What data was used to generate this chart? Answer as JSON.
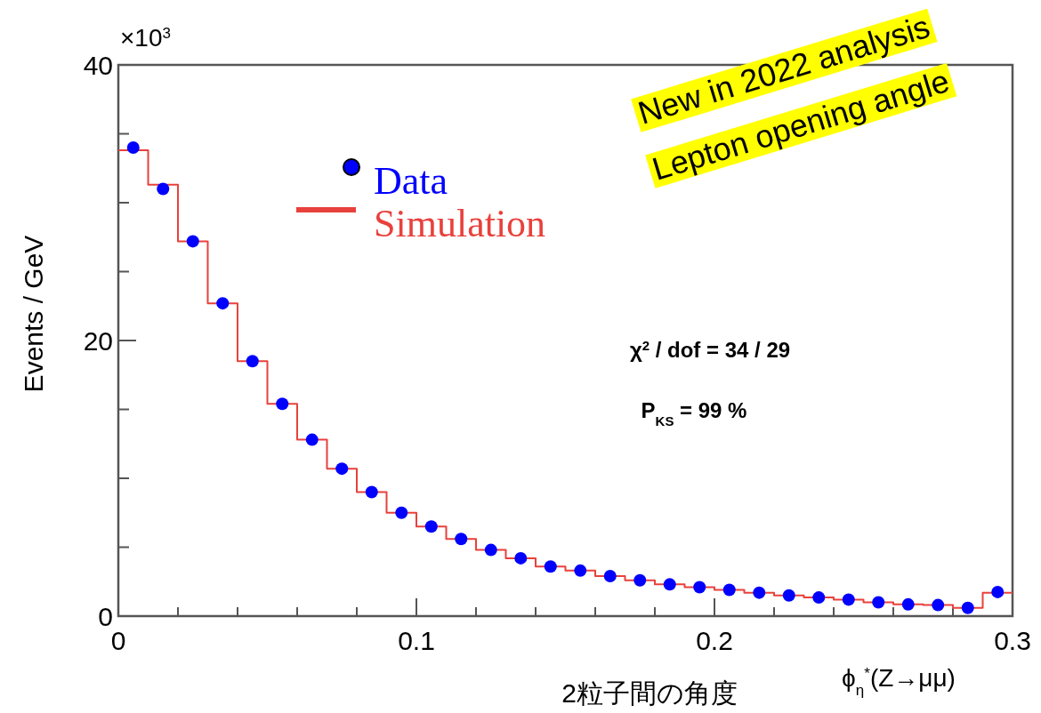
{
  "chart_data": {
    "type": "histogram",
    "ylabel": "Events / GeV",
    "xlabel": "ϕ$_{η}$$^{*}$(Z→μμ)",
    "xlim": [
      0,
      0.3
    ],
    "ylim": [
      0,
      40
    ],
    "xticks": [
      0,
      {
        "value": 0.02,
        "label": null
      },
      {
        "value": 0.04,
        "label": null
      },
      {
        "value": 0.06,
        "label": null
      },
      {
        "value": 0.08,
        "label": null
      },
      0.1,
      {
        "value": 0.12,
        "label": null
      },
      {
        "value": 0.14,
        "label": null
      },
      {
        "value": 0.16,
        "label": null
      },
      {
        "value": 0.18,
        "label": null
      },
      0.2,
      {
        "value": 0.22,
        "label": null
      },
      {
        "value": 0.24,
        "label": null
      },
      {
        "value": 0.26,
        "label": null
      },
      {
        "value": 0.28,
        "label": null
      },
      0.3
    ],
    "yticks": [
      0,
      {
        "value": 5,
        "label": null
      },
      {
        "value": 10,
        "label": null
      },
      {
        "value": 15,
        "label": null
      },
      20,
      {
        "value": 25,
        "label": null
      },
      {
        "value": 30,
        "label": null
      },
      {
        "value": 35,
        "label": null
      },
      40
    ],
    "bins": [
      0,
      0.01,
      0.02,
      0.03,
      0.04,
      0.05,
      0.06,
      0.07,
      0.08,
      0.09,
      0.1,
      0.11,
      0.12,
      0.13,
      0.14,
      0.15,
      0.16,
      0.17,
      0.18,
      0.19,
      0.2,
      0.21,
      0.22,
      0.23,
      0.24,
      0.25,
      0.26,
      0.27,
      0.28,
      0.29,
      0.3
    ],
    "series": [
      {
        "name": "Data",
        "type": "scatter",
        "color": "#0000ff",
        "x": [
          0.005,
          0.015,
          0.025,
          0.035,
          0.045,
          0.055,
          0.065,
          0.075,
          0.085,
          0.095,
          0.105,
          0.115,
          0.125,
          0.135,
          0.145,
          0.155,
          0.165,
          0.175,
          0.185,
          0.195,
          0.205,
          0.215,
          0.225,
          0.235,
          0.245,
          0.255,
          0.265,
          0.275,
          0.285,
          0.295
        ],
        "values": [
          34.0,
          31.0,
          27.2,
          22.7,
          18.5,
          15.4,
          12.8,
          10.7,
          9.0,
          7.5,
          6.5,
          5.6,
          4.8,
          4.2,
          3.6,
          3.3,
          2.9,
          2.6,
          2.3,
          2.1,
          1.9,
          1.7,
          1.5,
          1.35,
          1.2,
          1.0,
          0.85,
          0.8,
          0.6,
          1.75
        ]
      },
      {
        "name": "Simulation",
        "type": "histogram",
        "color": "#e8413c",
        "values": [
          33.8,
          31.3,
          27.2,
          22.7,
          18.5,
          15.4,
          12.8,
          10.7,
          9.0,
          7.5,
          6.5,
          5.6,
          4.8,
          4.2,
          3.6,
          3.3,
          2.9,
          2.6,
          2.3,
          2.1,
          1.9,
          1.7,
          1.5,
          1.35,
          1.2,
          1.0,
          0.85,
          0.8,
          0.6,
          1.7
        ]
      }
    ],
    "marker": "circle",
    "legend": "top left",
    "grid": false,
    "annotations": [
      "×10$^{3}$",
      "χ$^{2}$ / dof = 34 / 29",
      "P$_{KS}$ = 99 %",
      "New in 2022 analysis",
      "Lepton opening angle",
      "2粒子間の角度"
    ]
  }
}
